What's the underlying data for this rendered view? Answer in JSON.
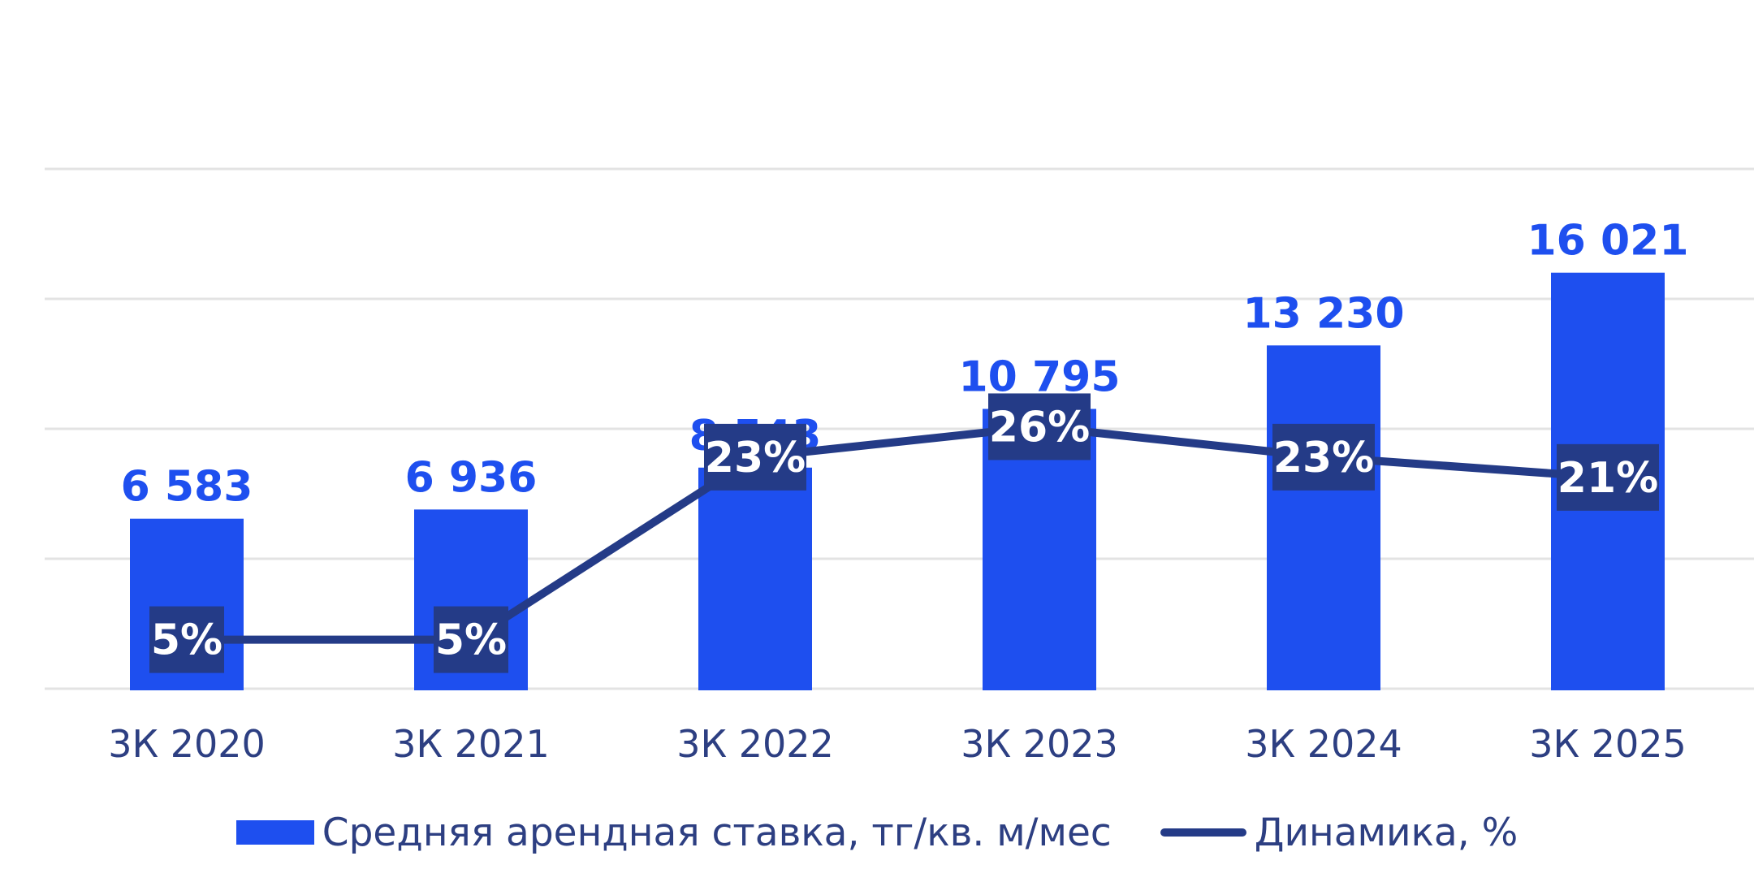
{
  "chart_data": {
    "type": "bar",
    "categories": [
      "3К 2020",
      "3К 2021",
      "3К 2022",
      "3К 2023",
      "3К 2024",
      "3К 2025"
    ],
    "series": [
      {
        "name": "Средняя арендная ставка, тг/кв. м/мес",
        "type": "bar",
        "values": [
          6583,
          6936,
          8543,
          10795,
          13230,
          16021
        ],
        "labels": [
          "6 583",
          "6 936",
          "8 543",
          "10 795",
          "13 230",
          "16 021"
        ],
        "color": "#1e4fef"
      },
      {
        "name": "Динамика, %",
        "type": "line",
        "values": [
          5,
          5,
          23,
          26,
          23,
          21
        ],
        "labels": [
          "5%",
          "5%",
          "23%",
          "26%",
          "23%",
          "21%"
        ],
        "color": "#243b87"
      }
    ],
    "ylim": [
      0,
      16000
    ],
    "y2lim": [
      0,
      90
    ],
    "grid": true,
    "legend_position": "bottom"
  },
  "colors": {
    "bar": "#1e4fef",
    "line": "#243b87",
    "bar_label": "#1e4fef",
    "axis_text": "#2d3f82",
    "gridline": "#e3e3e3"
  }
}
